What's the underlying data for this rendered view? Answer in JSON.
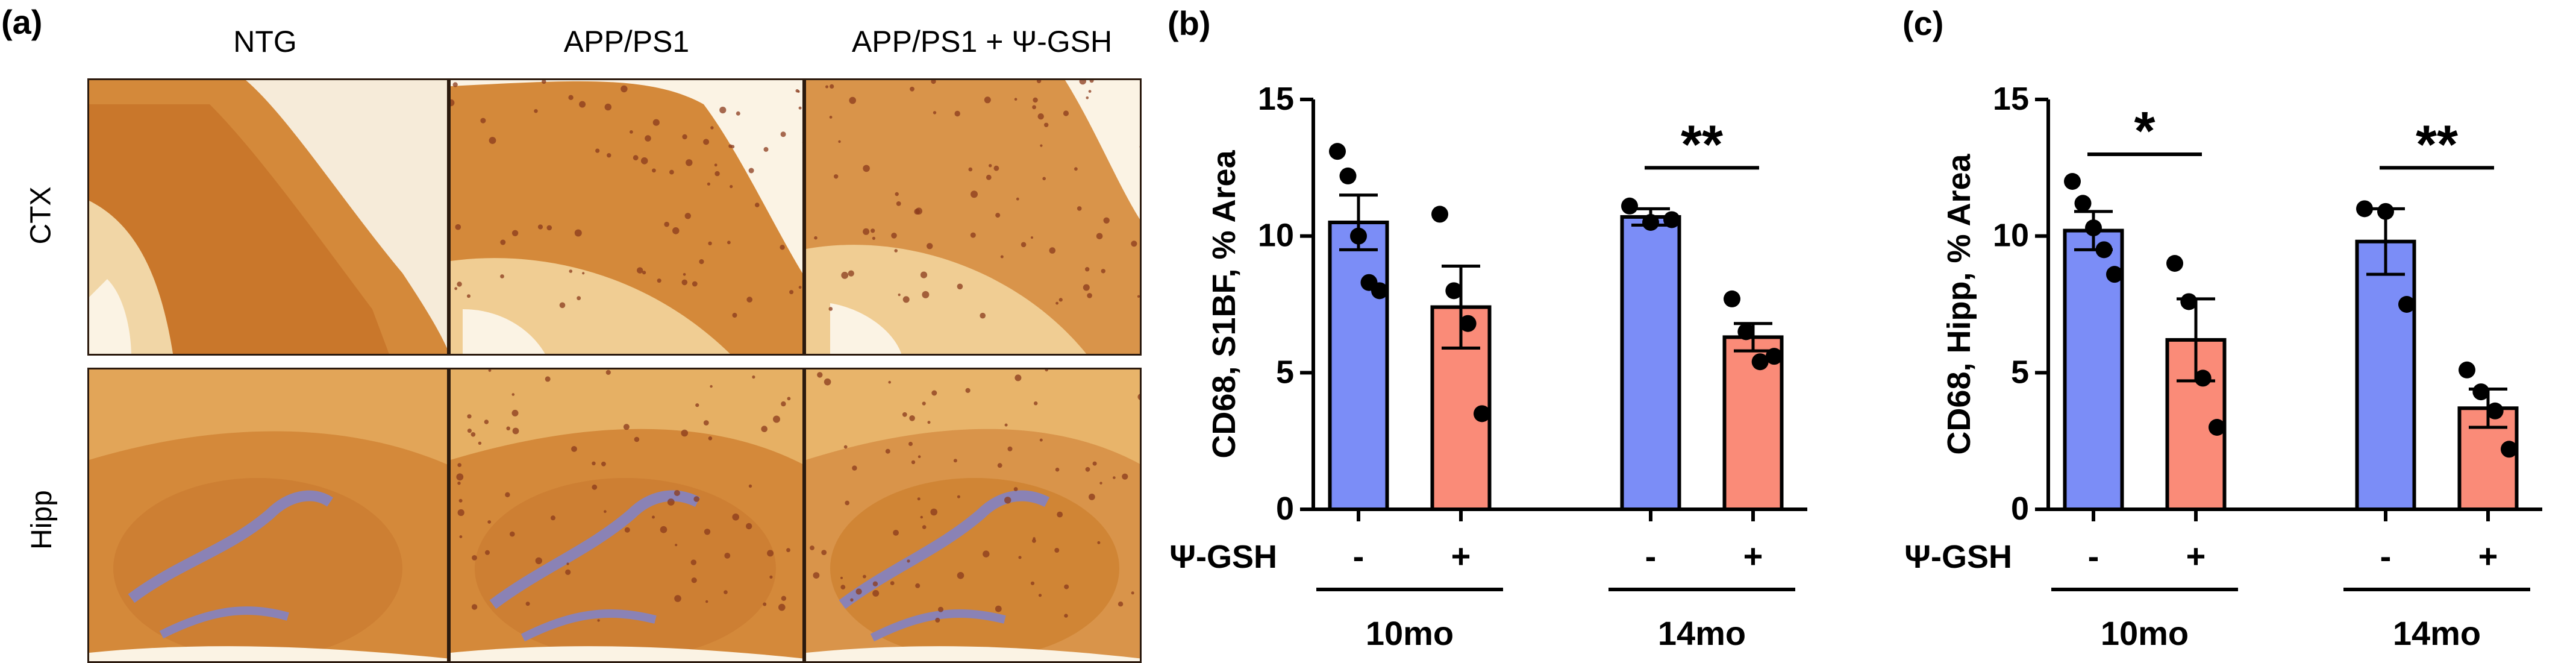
{
  "panel_a": {
    "label": "(a)",
    "columns": [
      "NTG",
      "APP/PS1",
      "APP/PS1 + Ψ-GSH"
    ],
    "rows": [
      "CTX",
      "Hipp"
    ]
  },
  "colors": {
    "vehicle": "#7b8df7",
    "treated": "#fa8b78",
    "tissue_light": "#e8a85a",
    "tissue_dark": "#cf7a2a",
    "plaque": "#8a3a1c",
    "dentate": "#8a82b5"
  },
  "chart_data": [
    {
      "panel": "(b)",
      "type": "bar",
      "ylabel": "CD68, S1BF, % Area",
      "ylim": [
        0,
        15
      ],
      "yticks": [
        "0",
        "5",
        "10",
        "15"
      ],
      "treatment_label": "Ψ-GSH",
      "bar_signs": [
        "-",
        "+",
        "-",
        "+"
      ],
      "groups": [
        "10mo",
        "14mo"
      ],
      "bars": [
        {
          "group": "10mo",
          "treatment": "-",
          "mean": 10.5,
          "sem": 1.0,
          "points": [
            13.1,
            12.2,
            10.0,
            8.3,
            8.0
          ]
        },
        {
          "group": "10mo",
          "treatment": "+",
          "mean": 7.4,
          "sem": 1.5,
          "points": [
            10.8,
            8.0,
            6.8,
            3.5
          ]
        },
        {
          "group": "14mo",
          "treatment": "-",
          "mean": 10.7,
          "sem": 0.3,
          "points": [
            11.1,
            10.5,
            10.6
          ]
        },
        {
          "group": "14mo",
          "treatment": "+",
          "mean": 6.3,
          "sem": 0.5,
          "points": [
            7.7,
            6.5,
            5.4,
            5.6
          ]
        }
      ],
      "significance": [
        {
          "group": "14mo",
          "label": "**"
        }
      ]
    },
    {
      "panel": "(c)",
      "type": "bar",
      "ylabel": "CD68, Hipp, % Area",
      "ylim": [
        0,
        15
      ],
      "yticks": [
        "0",
        "5",
        "10",
        "15"
      ],
      "treatment_label": "Ψ-GSH",
      "bar_signs": [
        "-",
        "+",
        "-",
        "+"
      ],
      "groups": [
        "10mo",
        "14mo"
      ],
      "bars": [
        {
          "group": "10mo",
          "treatment": "-",
          "mean": 10.2,
          "sem": 0.7,
          "points": [
            12.0,
            11.2,
            10.3,
            9.5,
            8.6
          ]
        },
        {
          "group": "10mo",
          "treatment": "+",
          "mean": 6.2,
          "sem": 1.5,
          "points": [
            9.0,
            7.6,
            4.8,
            3.0
          ]
        },
        {
          "group": "14mo",
          "treatment": "-",
          "mean": 9.8,
          "sem": 1.2,
          "points": [
            11.0,
            10.9,
            7.5
          ]
        },
        {
          "group": "14mo",
          "treatment": "+",
          "mean": 3.7,
          "sem": 0.7,
          "points": [
            5.1,
            4.3,
            3.6,
            2.2
          ]
        }
      ],
      "significance": [
        {
          "group": "10mo",
          "label": "*"
        },
        {
          "group": "14mo",
          "label": "**"
        }
      ]
    }
  ]
}
